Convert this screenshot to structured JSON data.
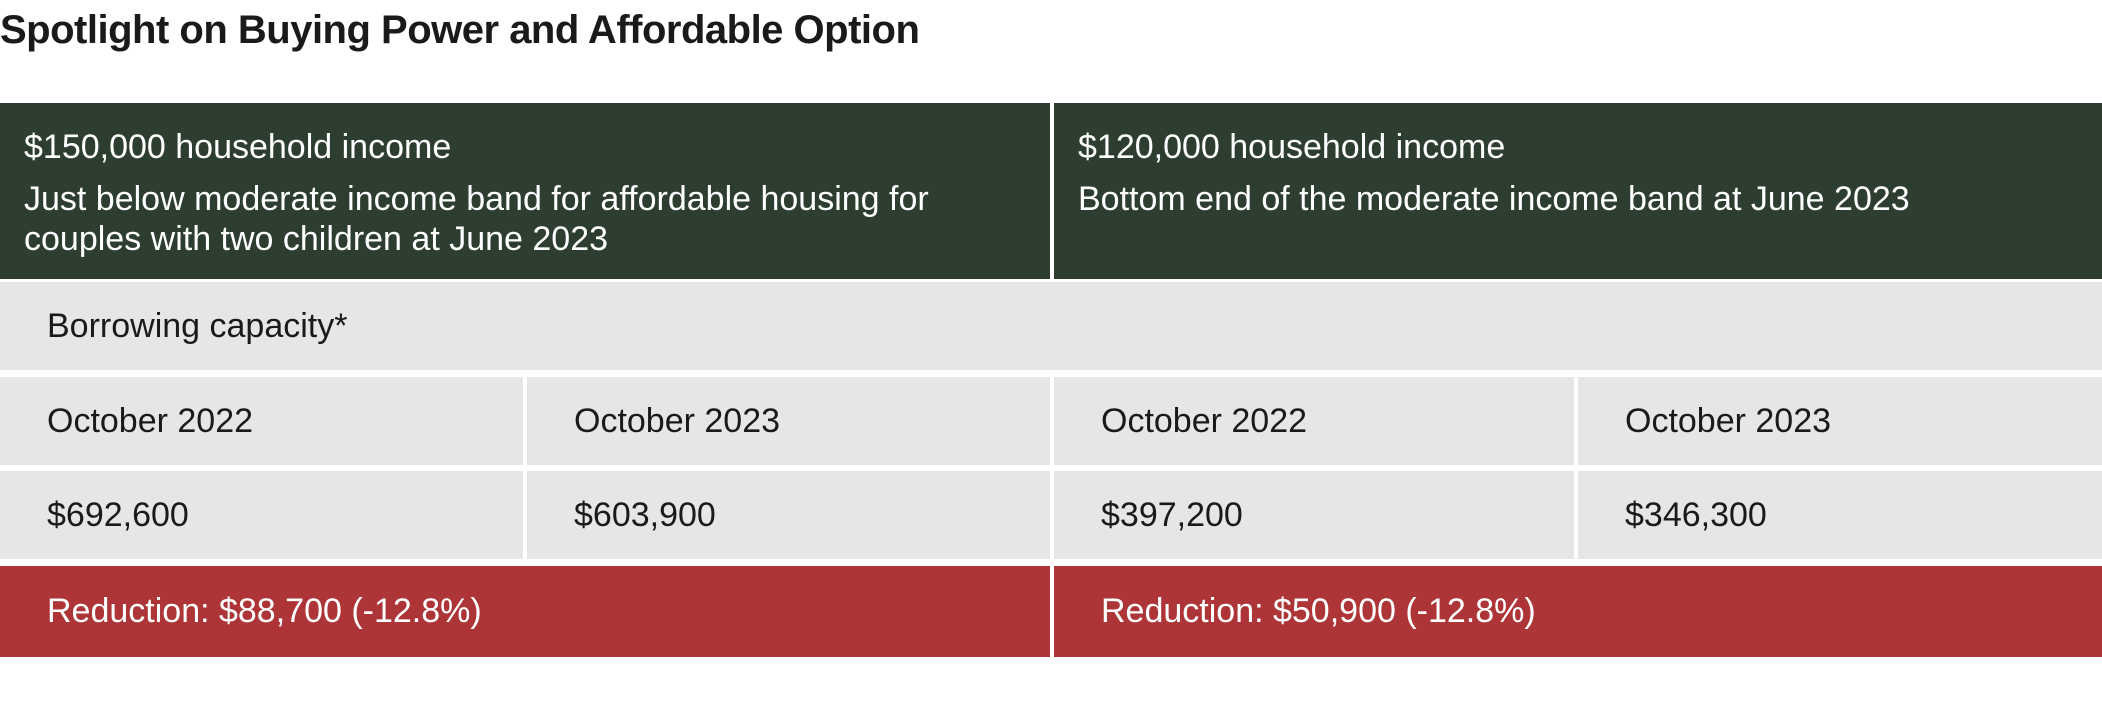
{
  "title": "Spotlight on Buying Power and Affordable Option",
  "header": [
    {
      "income": "$150,000 household income",
      "description": "Just below moderate income band for affordable housing for couples with two children at June 2023"
    },
    {
      "income": "$120,000 household income",
      "description": "Bottom end of the moderate income band at June 2023"
    }
  ],
  "table": {
    "caption": "Borrowing capacity*",
    "periods": [
      "October 2022",
      "October 2023",
      "October 2022",
      "October 2023"
    ],
    "values": [
      "$692,600",
      "$603,900",
      "$397,200",
      "$346,300"
    ]
  },
  "reductions": [
    "Reduction: $88,700 (-12.8%)",
    "Reduction: $50,900 (-12.8%)"
  ]
}
